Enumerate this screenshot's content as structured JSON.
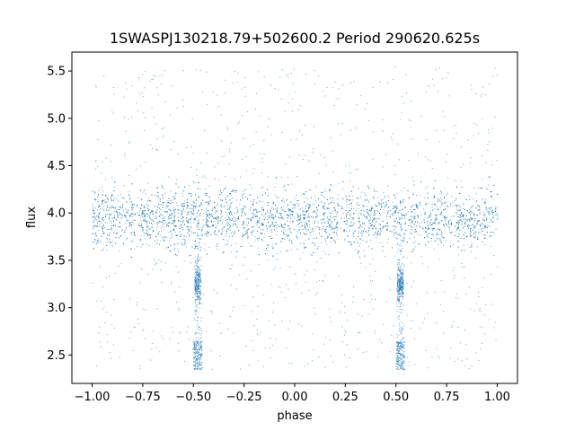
{
  "chart_data": {
    "type": "scatter",
    "title": "1SWASPJ130218.79+502600.2 Period 290620.625s",
    "xlabel": "phase",
    "ylabel": "flux",
    "xlim": [
      -1.1,
      1.1
    ],
    "ylim": [
      2.2,
      5.7
    ],
    "xticks": [
      -1.0,
      -0.75,
      -0.5,
      -0.25,
      0.0,
      0.25,
      0.5,
      0.75,
      1.0
    ],
    "xtick_labels": [
      "−1.00",
      "−0.75",
      "−0.50",
      "−0.25",
      "0.00",
      "0.25",
      "0.50",
      "0.75",
      "1.00"
    ],
    "yticks": [
      2.5,
      3.0,
      3.5,
      4.0,
      4.5,
      5.0,
      5.5
    ],
    "ytick_labels": [
      "2.5",
      "3.0",
      "3.5",
      "4.0",
      "4.5",
      "5.0",
      "5.5"
    ],
    "grid": false,
    "marker_color": "#1f77b4",
    "x_range": [
      -1.0,
      1.0
    ],
    "baseline_flux": 3.95,
    "baseline_scatter": 0.15,
    "outlier_flux_range": [
      2.35,
      5.55
    ],
    "eclipses": [
      {
        "phase": -0.48,
        "width": 0.03,
        "flux_levels": [
          3.25,
          2.4
        ]
      },
      {
        "phase": 0.52,
        "width": 0.03,
        "flux_levels": [
          3.25,
          2.4
        ]
      }
    ],
    "gap_phases": [
      -0.78,
      -0.7,
      -0.45,
      -0.35,
      -0.27,
      -0.08,
      0.0,
      0.12,
      0.22,
      0.3,
      0.47,
      0.55,
      0.63,
      0.78,
      0.85,
      0.92,
      0.98
    ]
  }
}
